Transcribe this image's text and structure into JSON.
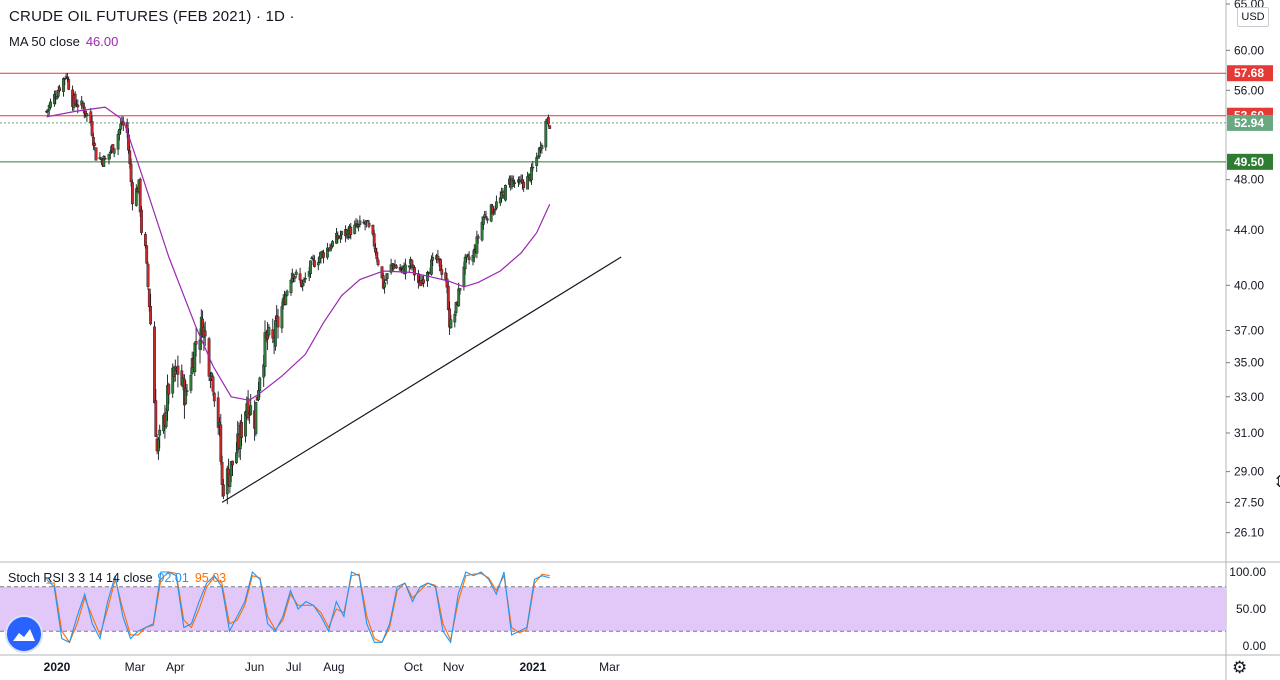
{
  "header": {
    "title": "CRUDE OIL FUTURES (FEB 2021) · 1D ·",
    "ma_label": "MA 50 close",
    "ma_value": "46.00",
    "stoch_label": "Stoch RSI 3 3 14 14 close",
    "stoch_k": "92.01",
    "stoch_d": "95.03",
    "currency": "USD"
  },
  "chart_data": [
    {
      "type": "candlestick",
      "title": "CRUDE OIL FUTURES (FEB 2021)",
      "interval": "1D",
      "y_scale": "log",
      "ylim": [
        25.2,
        65.0
      ],
      "y_ticks": [
        "65.00",
        "60.00",
        "56.00",
        "53.60",
        "52.94",
        "49.50",
        "48.00",
        "44.00",
        "40.00",
        "37.00",
        "35.00",
        "33.00",
        "31.00",
        "29.00",
        "27.50",
        "26.10"
      ],
      "x_ticks": [
        "2020",
        "Mar",
        "Apr",
        "Jun",
        "Jul",
        "Aug",
        "Oct",
        "Nov",
        "2021",
        "Mar"
      ],
      "x_tick_dates": [
        "2020-01-01",
        "2020-03-01",
        "2020-04-01",
        "2020-06-01",
        "2020-07-01",
        "2020-08-01",
        "2020-10-01",
        "2020-11-01",
        "2021-01-01",
        "2021-03-01"
      ],
      "price_path": [
        [
          "2019-12-24",
          54.0
        ],
        [
          "2020-01-08",
          57.6
        ],
        [
          "2020-01-13",
          55.0
        ],
        [
          "2020-01-21",
          54.4
        ],
        [
          "2020-01-27",
          53.0
        ],
        [
          "2020-01-31",
          50.0
        ],
        [
          "2020-02-07",
          49.6
        ],
        [
          "2020-02-14",
          51.0
        ],
        [
          "2020-02-20",
          53.0
        ],
        [
          "2020-02-24",
          52.0
        ],
        [
          "2020-02-28",
          46.5
        ],
        [
          "2020-03-04",
          47.5
        ],
        [
          "2020-03-06",
          44.0
        ],
        [
          "2020-03-09",
          42.5
        ],
        [
          "2020-03-13",
          37.5
        ],
        [
          "2020-03-18",
          30.0
        ],
        [
          "2020-03-23",
          31.5
        ],
        [
          "2020-03-27",
          33.5
        ],
        [
          "2020-04-03",
          34.5
        ],
        [
          "2020-04-09",
          33.0
        ],
        [
          "2020-04-16",
          36.0
        ],
        [
          "2020-04-22",
          37.5
        ],
        [
          "2020-04-27",
          35.0
        ],
        [
          "2020-04-30",
          34.0
        ],
        [
          "2020-05-05",
          31.0
        ],
        [
          "2020-05-07",
          28.2
        ],
        [
          "2020-05-14",
          29.2
        ],
        [
          "2020-05-20",
          30.5
        ],
        [
          "2020-05-26",
          32.8
        ],
        [
          "2020-06-01",
          31.8
        ],
        [
          "2020-06-05",
          34.5
        ],
        [
          "2020-06-10",
          36.5
        ],
        [
          "2020-06-15",
          36.2
        ],
        [
          "2020-06-22",
          38.5
        ],
        [
          "2020-06-30",
          41.0
        ],
        [
          "2020-07-08",
          40.0
        ],
        [
          "2020-07-15",
          41.5
        ],
        [
          "2020-07-29",
          42.8
        ],
        [
          "2020-08-05",
          43.5
        ],
        [
          "2020-08-14",
          44.0
        ],
        [
          "2020-08-26",
          44.5
        ],
        [
          "2020-09-01",
          43.0
        ],
        [
          "2020-09-08",
          40.0
        ],
        [
          "2020-09-15",
          41.5
        ],
        [
          "2020-09-22",
          41.0
        ],
        [
          "2020-09-29",
          41.5
        ],
        [
          "2020-10-06",
          40.0
        ],
        [
          "2020-10-12",
          41.2
        ],
        [
          "2020-10-19",
          41.8
        ],
        [
          "2020-10-26",
          40.5
        ],
        [
          "2020-10-30",
          37.0
        ],
        [
          "2020-11-03",
          38.5
        ],
        [
          "2020-11-09",
          41.5
        ],
        [
          "2020-11-16",
          42.0
        ],
        [
          "2020-11-24",
          45.0
        ],
        [
          "2020-11-30",
          45.5
        ],
        [
          "2020-12-08",
          46.5
        ],
        [
          "2020-12-15",
          48.0
        ],
        [
          "2020-12-21",
          47.5
        ],
        [
          "2020-12-28",
          48.0
        ],
        [
          "2020-12-31",
          48.5
        ],
        [
          "2021-01-06",
          50.5
        ],
        [
          "2021-01-12",
          53.5
        ],
        [
          "2021-01-14",
          53.0
        ]
      ],
      "ma50": [
        [
          "2019-12-24",
          53.5
        ],
        [
          "2020-01-15",
          54.0
        ],
        [
          "2020-02-07",
          54.4
        ],
        [
          "2020-02-21",
          53.2
        ],
        [
          "2020-03-06",
          48.5
        ],
        [
          "2020-03-27",
          42.0
        ],
        [
          "2020-04-17",
          37.2
        ],
        [
          "2020-04-30",
          34.8
        ],
        [
          "2020-05-14",
          33.0
        ],
        [
          "2020-05-28",
          32.8
        ],
        [
          "2020-06-05",
          33.2
        ],
        [
          "2020-06-22",
          34.2
        ],
        [
          "2020-07-10",
          35.5
        ],
        [
          "2020-07-24",
          37.5
        ],
        [
          "2020-08-07",
          39.3
        ],
        [
          "2020-08-21",
          40.4
        ],
        [
          "2020-09-08",
          41.0
        ],
        [
          "2020-09-29",
          40.9
        ],
        [
          "2020-10-14",
          40.6
        ],
        [
          "2020-10-28",
          40.3
        ],
        [
          "2020-11-09",
          39.9
        ],
        [
          "2020-11-20",
          40.2
        ],
        [
          "2020-12-07",
          41.0
        ],
        [
          "2020-12-23",
          42.3
        ],
        [
          "2021-01-04",
          43.8
        ],
        [
          "2021-01-14",
          46.0
        ]
      ],
      "horizontal_levels": [
        {
          "label": "57.68",
          "value": 57.68,
          "color": "#e53935"
        },
        {
          "label": "53.60",
          "value": 53.6,
          "color": "#e53935"
        },
        {
          "label": "52.94",
          "value": 52.94,
          "color": "#6aa882"
        },
        {
          "label": "49.50",
          "value": 49.5,
          "color": "#2e7d32"
        }
      ],
      "trendline": [
        [
          "2020-05-07",
          27.5
        ],
        [
          "2021-03-10",
          42.0
        ]
      ]
    },
    {
      "type": "line",
      "title": "Stoch RSI 3 3 14 14 close",
      "ylim": [
        0,
        100
      ],
      "y_ticks": [
        "100.00",
        "50.00",
        "0.00"
      ],
      "band": [
        20,
        80
      ],
      "band_color": "#e1c8f8",
      "series": [
        {
          "name": "K",
          "color": "#2196f3",
          "values": [
            90,
            80,
            10,
            5,
            40,
            70,
            30,
            10,
            60,
            95,
            40,
            10,
            20,
            25,
            30,
            100,
            100,
            95,
            25,
            30,
            60,
            85,
            95,
            80,
            20,
            40,
            60,
            100,
            90,
            30,
            20,
            40,
            75,
            50,
            60,
            55,
            40,
            20,
            60,
            40,
            100,
            95,
            30,
            5,
            5,
            30,
            80,
            85,
            60,
            80,
            85,
            80,
            20,
            5,
            70,
            100,
            95,
            100,
            90,
            70,
            100,
            15,
            20,
            25,
            90,
            95,
            92
          ]
        },
        {
          "name": "D",
          "color": "#ff6d00",
          "values": [
            85,
            85,
            20,
            5,
            30,
            65,
            40,
            15,
            50,
            90,
            50,
            15,
            15,
            25,
            28,
            90,
            100,
            98,
            35,
            25,
            50,
            80,
            93,
            85,
            30,
            35,
            55,
            95,
            92,
            40,
            22,
            35,
            70,
            55,
            55,
            55,
            45,
            25,
            50,
            45,
            95,
            97,
            40,
            10,
            5,
            25,
            75,
            85,
            65,
            75,
            85,
            82,
            30,
            8,
            60,
            95,
            97,
            98,
            92,
            75,
            95,
            25,
            18,
            22,
            85,
            97,
            95
          ]
        }
      ]
    }
  ]
}
